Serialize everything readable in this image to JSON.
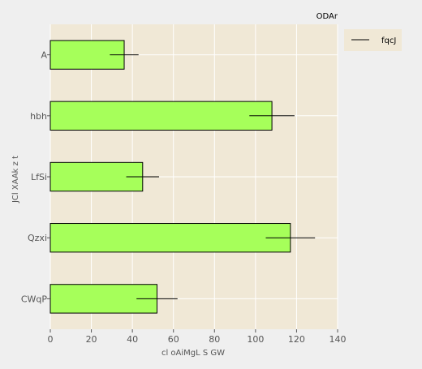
{
  "chart_data": {
    "type": "bar",
    "orientation": "horizontal",
    "title": "ODAr",
    "xlabel": "cl oAiMgL S GW",
    "ylabel": "JCl XAAk z t",
    "categories": [
      "A",
      "hbh",
      "LfSi",
      "Qzxi",
      "CWqP"
    ],
    "series": [
      {
        "name": "fqcJ",
        "values": [
          36,
          108,
          45,
          117,
          52
        ],
        "errors": [
          7,
          11,
          8,
          12,
          10
        ]
      }
    ],
    "xlim": [
      0,
      140
    ],
    "xticks": [
      "0",
      "20",
      "40",
      "60",
      "80",
      "100",
      "120",
      "140"
    ],
    "grid": true,
    "legend_position": "top-right",
    "colors": {
      "figure_bg": "#efefef",
      "plot_bg": "#f0e8d6",
      "bar_fill": "#a6ff5a",
      "bar_edge": "#000000",
      "grid": "#ffffff"
    }
  }
}
